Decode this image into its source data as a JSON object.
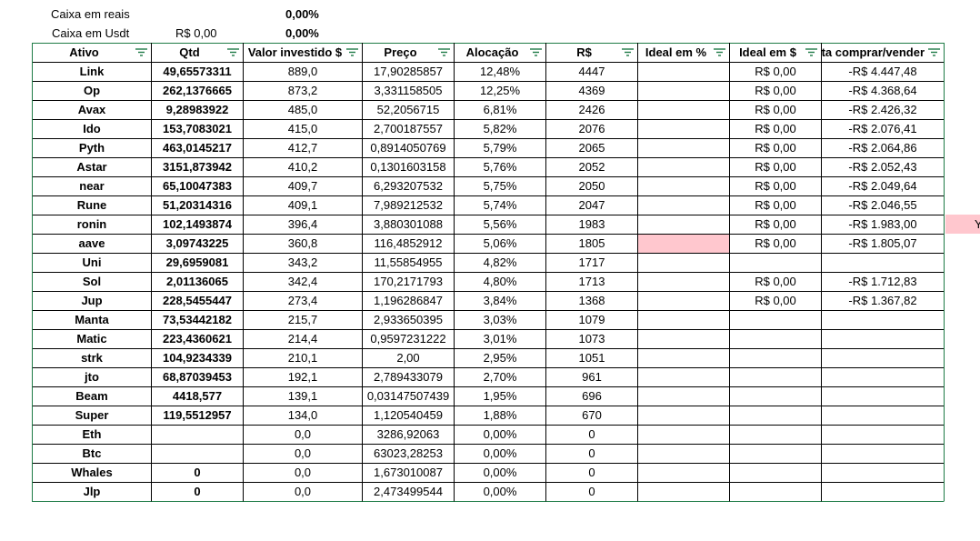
{
  "summary": {
    "cash_brl_label": "Caixa em reais",
    "cash_brl_pct": "0,00%",
    "cash_usdt_label": "Caixa em Usdt",
    "cash_usdt_value": "R$ 0,00",
    "cash_usdt_pct": "0,00%"
  },
  "table": {
    "headers": [
      "Ativo",
      "Qtd",
      "Valor investido $",
      "Preço",
      "Alocação",
      "R$",
      "Ideal em %",
      "Ideal em $",
      "Falta comprar/vender"
    ],
    "rows": [
      [
        "Link",
        "49,65573311",
        "889,0",
        "17,90285857",
        "12,48%",
        "4447",
        "",
        "R$ 0,00",
        "-R$ 4.447,48"
      ],
      [
        "Op",
        "262,1376665",
        "873,2",
        "3,331158505",
        "12,25%",
        "4369",
        "",
        "R$ 0,00",
        "-R$ 4.368,64"
      ],
      [
        "Avax",
        "9,28983922",
        "485,0",
        "52,2056715",
        "6,81%",
        "2426",
        "",
        "R$ 0,00",
        "-R$ 2.426,32"
      ],
      [
        "Ido",
        "153,7083021",
        "415,0",
        "2,700187557",
        "5,82%",
        "2076",
        "",
        "R$ 0,00",
        "-R$ 2.076,41"
      ],
      [
        "Pyth",
        "463,0145217",
        "412,7",
        "0,8914050769",
        "5,79%",
        "2065",
        "",
        "R$ 0,00",
        "-R$ 2.064,86"
      ],
      [
        "Astar",
        "3151,873942",
        "410,2",
        "0,1301603158",
        "5,76%",
        "2052",
        "",
        "R$ 0,00",
        "-R$ 2.052,43"
      ],
      [
        "near",
        "65,10047383",
        "409,7",
        "6,293207532",
        "5,75%",
        "2050",
        "",
        "R$ 0,00",
        "-R$ 2.049,64"
      ],
      [
        "Rune",
        "51,20314316",
        "409,1",
        "7,989212532",
        "5,74%",
        "2047",
        "",
        "R$ 0,00",
        "-R$ 2.046,55"
      ],
      [
        "ronin",
        "102,1493874",
        "396,4",
        "3,880301088",
        "5,56%",
        "1983",
        "",
        "R$ 0,00",
        "-R$ 1.983,00"
      ],
      [
        "aave",
        "3,09743225",
        "360,8",
        "116,4852912",
        "5,06%",
        "1805",
        "",
        "R$ 0,00",
        "-R$ 1.805,07"
      ],
      [
        "Uni",
        "29,6959081",
        "343,2",
        "11,55854955",
        "4,82%",
        "1717",
        "",
        "",
        ""
      ],
      [
        "Sol",
        "2,01136065",
        "342,4",
        "170,2171793",
        "4,80%",
        "1713",
        "",
        "R$ 0,00",
        "-R$ 1.712,83"
      ],
      [
        "Jup",
        "228,5455447",
        "273,4",
        "1,196286847",
        "3,84%",
        "1368",
        "",
        "R$ 0,00",
        "-R$ 1.367,82"
      ],
      [
        "Manta",
        "73,53442182",
        "215,7",
        "2,933650395",
        "3,03%",
        "1079",
        "",
        "",
        ""
      ],
      [
        "Matic",
        "223,4360621",
        "214,4",
        "0,9597231222",
        "3,01%",
        "1073",
        "",
        "",
        ""
      ],
      [
        "strk",
        "104,9234339",
        "210,1",
        "2,00",
        "2,95%",
        "1051",
        "",
        "",
        ""
      ],
      [
        "jto",
        "68,87039453",
        "192,1",
        "2,789433079",
        "2,70%",
        "961",
        "",
        "",
        ""
      ],
      [
        "Beam",
        "4418,577",
        "139,1",
        "0,03147507439",
        "1,95%",
        "696",
        "",
        "",
        ""
      ],
      [
        "Super",
        "119,5512957",
        "134,0",
        "1,120540459",
        "1,88%",
        "670",
        "",
        "",
        ""
      ],
      [
        "Eth",
        "",
        "0,0",
        "3286,92063",
        "0,00%",
        "0",
        "",
        "",
        ""
      ],
      [
        "Btc",
        "",
        "0,0",
        "63023,28253",
        "0,00%",
        "0",
        "",
        "",
        ""
      ],
      [
        "Whales",
        "0",
        "0,0",
        "1,673010087",
        "0,00%",
        "0",
        "",
        "",
        ""
      ],
      [
        "Jlp",
        "0",
        "0,0",
        "2,473499544",
        "0,00%",
        "0",
        "",
        "",
        ""
      ]
    ]
  },
  "side_partial": "Y",
  "colors": {
    "border": "#1e7b46",
    "grid": "#000000",
    "highlight": "#ffc7ce",
    "filter_icon": "#1e7b46"
  },
  "icons": {
    "filter": "filter-funnel-icon"
  }
}
